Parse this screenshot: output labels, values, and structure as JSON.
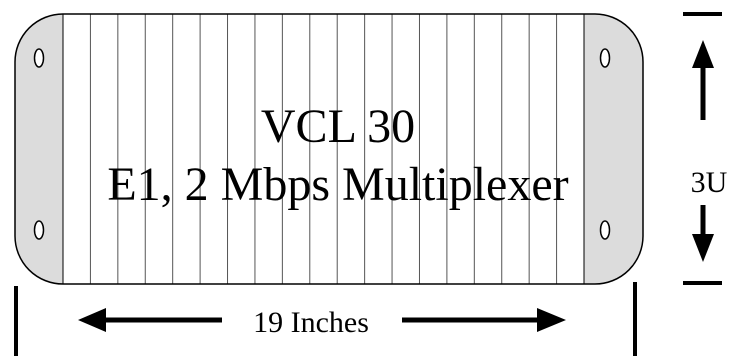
{
  "panel": {
    "model": "VCL 30",
    "description": "E1, 2 Mbps Multiplexer"
  },
  "dimensions": {
    "width_label": "19 Inches",
    "height_label": "3U"
  },
  "colors": {
    "outline": "#000000",
    "ear_fill": "#dcdcdc",
    "panel_fill": "#ffffff",
    "slot_line": "#555555"
  }
}
